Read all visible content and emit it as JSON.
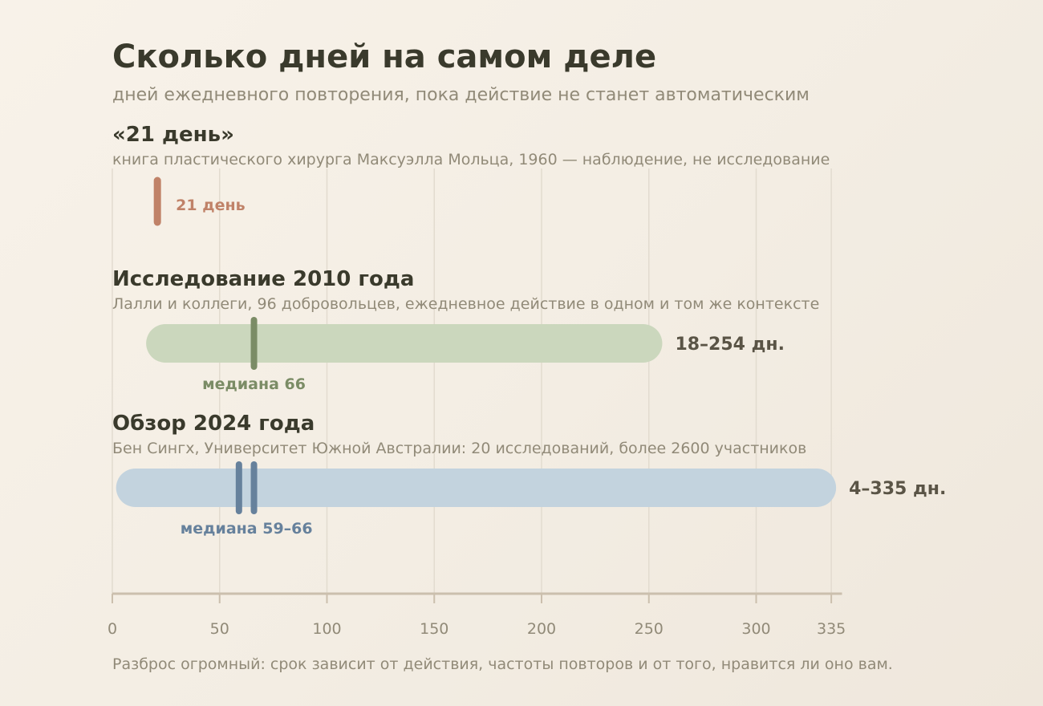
{
  "title": "Сколько дней на самом деле",
  "subtitle": "дней ежедневного повторения, пока действие не станет автоматическим",
  "caption": "Разброс огромный: срок зависит от действия, частоты повторов и от того, нравится ли оно вам.",
  "colors": {
    "myth": "#c08268",
    "study2010_bar": "#cbd7bd",
    "study2010_median": "#7b8c66",
    "review2024_bar": "#c3d3de",
    "review2024_median": "#66819c",
    "grid": "#e2dbcf",
    "axis": "#cbbfad"
  },
  "chart_data": {
    "type": "range",
    "xlim": [
      0,
      340
    ],
    "ticks": [
      0,
      50,
      100,
      150,
      200,
      250,
      300,
      335
    ],
    "tick_labels": [
      "0",
      "50",
      "100",
      "150",
      "200",
      "250",
      "300",
      "335"
    ],
    "grid": true,
    "rows": [
      {
        "id": "myth",
        "title": "«21 день»",
        "desc": "книга пластического хирурга Максуэлла Мольца, 1960 — наблюдение, не исследование",
        "kind": "point",
        "value": 21,
        "value_label": "21 день"
      },
      {
        "id": "study2010",
        "title": "Исследование 2010 года",
        "desc": "Лалли и коллеги, 96 добровольцев, ежедневное действие в одном и том же контексте",
        "kind": "range",
        "min": 18,
        "max": 254,
        "range_label": "18–254 дн.",
        "medians": [
          66
        ],
        "median_label": "медиана 66"
      },
      {
        "id": "review2024",
        "title": "Обзор 2024 года",
        "desc": "Бен Сингх, Университет Южной Австралии: 20 исследований, более 2600 участников",
        "kind": "range",
        "min": 4,
        "max": 335,
        "range_label": "4–335 дн.",
        "medians": [
          59,
          66
        ],
        "median_label": "медиана 59–66"
      }
    ]
  }
}
